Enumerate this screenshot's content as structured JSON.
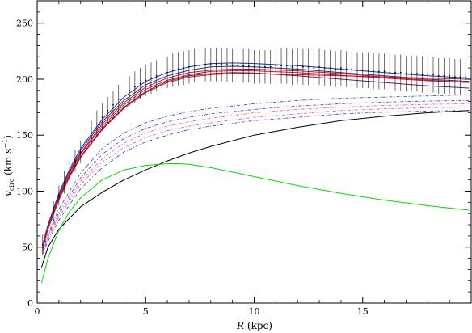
{
  "chart_data": {
    "type": "line",
    "xlabel": "R (kpc)",
    "ylabel": "v_circ (km s^-1)",
    "xlim": [
      0,
      20
    ],
    "ylim": [
      0,
      270
    ],
    "x_ticks": [
      0,
      5,
      10,
      15
    ],
    "y_ticks": [
      0,
      50,
      100,
      150,
      200,
      250
    ],
    "grid": false,
    "legend": "none",
    "colors": {
      "observed": "#000000",
      "blue_model": "#1f2ea8",
      "red_model": "#d21a1a",
      "purple_model": "#6b1a7a",
      "disk_curve": "#00dd00",
      "halo_curve": "#000000",
      "dotted_blue": "#3a3ad0",
      "dotted_pink": "#e05aa0"
    },
    "observed_points": {
      "x": [
        0.25,
        0.5,
        0.75,
        1.0,
        1.25,
        1.5,
        1.75,
        2.0,
        2.25,
        2.5,
        2.75,
        3.0,
        3.25,
        3.5,
        3.75,
        4.0,
        4.25,
        4.5,
        4.75,
        5.0,
        5.25,
        5.5,
        5.75,
        6.0,
        6.25,
        6.5,
        6.75,
        7.0,
        7.25,
        7.5,
        7.75,
        8.0,
        8.25,
        8.5,
        8.75,
        9.0,
        9.25,
        9.5,
        9.75,
        10.0,
        10.25,
        10.5,
        10.75,
        11.0,
        11.25,
        11.5,
        11.75,
        12.0,
        12.25,
        12.5,
        12.75,
        13.0,
        13.25,
        13.5,
        13.75,
        14.0,
        14.25,
        14.5,
        14.75,
        15.0,
        15.25,
        15.5,
        15.75,
        16.0,
        16.25,
        16.5,
        16.75,
        17.0,
        17.25,
        17.5,
        17.75,
        18.0,
        18.25,
        18.5,
        18.75,
        19.0,
        19.25,
        19.5,
        19.75
      ],
      "v": [
        52,
        68,
        82,
        96,
        108,
        118,
        127,
        135,
        145,
        152,
        160,
        166,
        172,
        177,
        182,
        186,
        190,
        193,
        196,
        199,
        201,
        203,
        205,
        206,
        208,
        209,
        210,
        211,
        212,
        212,
        213,
        213,
        213,
        213,
        213,
        212,
        212,
        212,
        212,
        211,
        211,
        211,
        211,
        212,
        212,
        212,
        211,
        212,
        211,
        211,
        210,
        211,
        210,
        210,
        209,
        210,
        209,
        209,
        208,
        208,
        208,
        207,
        207,
        207,
        206,
        206,
        206,
        205,
        205,
        205,
        204,
        204,
        204,
        203,
        203,
        203,
        202,
        202,
        202
      ],
      "err": [
        9,
        9,
        9,
        9,
        10,
        10,
        10,
        10,
        11,
        11,
        12,
        12,
        12,
        13,
        13,
        13,
        13,
        14,
        14,
        14,
        14,
        14,
        14,
        14,
        15,
        15,
        15,
        15,
        15,
        15,
        15,
        15,
        15,
        15,
        15,
        15,
        15,
        15,
        15,
        15,
        15,
        15,
        15,
        15,
        16,
        16,
        16,
        16,
        16,
        16,
        16,
        16,
        16,
        16,
        16,
        16,
        16,
        16,
        16,
        16,
        16,
        16,
        16,
        16,
        16,
        16,
        16,
        16,
        16,
        16,
        16,
        16,
        16,
        16,
        16,
        16,
        16,
        16,
        16
      ]
    },
    "series": [
      {
        "color": "#1f2ea8",
        "style": "solid",
        "x": [
          0.25,
          0.5,
          1,
          1.5,
          2,
          3,
          4,
          5,
          6,
          7,
          8,
          9,
          10,
          12,
          14,
          16,
          18,
          19.9
        ],
        "y": [
          52,
          70,
          98,
          120,
          138,
          164,
          184,
          198,
          206,
          211,
          214,
          214.5,
          214,
          212,
          209,
          206,
          203,
          201
        ]
      },
      {
        "color": "#1f2ea8",
        "style": "solid",
        "x": [
          0.25,
          0.5,
          1,
          1.5,
          2,
          3,
          4,
          5,
          6,
          7,
          8,
          9,
          10,
          12,
          14,
          16,
          18,
          19.9
        ],
        "y": [
          51,
          69,
          96,
          118,
          136,
          162,
          181,
          195,
          203,
          208,
          211,
          211.5,
          211,
          209,
          206,
          203,
          200,
          198
        ]
      },
      {
        "color": "#d21a1a",
        "style": "solid",
        "x": [
          0.25,
          0.5,
          1,
          1.5,
          2,
          3,
          4,
          5,
          6,
          7,
          8,
          9,
          10,
          12,
          14,
          16,
          18,
          19.9
        ],
        "y": [
          50,
          68,
          95,
          117,
          134,
          160,
          179,
          193,
          201,
          206,
          208,
          209,
          209,
          207.5,
          205,
          202,
          199,
          197
        ]
      },
      {
        "color": "#d21a1a",
        "style": "solid",
        "x": [
          0.25,
          0.5,
          1,
          1.5,
          2,
          3,
          4,
          5,
          6,
          7,
          8,
          9,
          10,
          12,
          14,
          16,
          18,
          19.9
        ],
        "y": [
          50,
          67,
          94,
          115,
          133,
          158,
          177,
          191,
          199,
          204,
          207,
          207.5,
          207.5,
          206,
          203.5,
          201,
          198.5,
          197
        ]
      },
      {
        "color": "#6b1a7a",
        "style": "solid",
        "x": [
          0.25,
          0.5,
          1,
          1.5,
          2,
          3,
          4,
          5,
          6,
          7,
          8,
          9,
          10,
          12,
          14,
          16,
          18,
          19.9
        ],
        "y": [
          49,
          66,
          93,
          114,
          131,
          156,
          175,
          189,
          198,
          203,
          205,
          206,
          205.5,
          203,
          200,
          197,
          194,
          192
        ]
      },
      {
        "color": "#d21a1a",
        "style": "solid",
        "x": [
          0.25,
          0.5,
          1,
          1.5,
          2,
          3,
          4,
          5,
          6,
          7,
          8,
          9,
          10,
          12,
          14,
          16,
          18,
          19.9
        ],
        "y": [
          49,
          66,
          92,
          113,
          130,
          155,
          174,
          188,
          197,
          202,
          204,
          205,
          205,
          204,
          203,
          202,
          201,
          200
        ]
      },
      {
        "color": "#3a3ad0",
        "style": "dashdot",
        "x": [
          0.25,
          0.5,
          1,
          2,
          3,
          4,
          5,
          6,
          7,
          8,
          10,
          12,
          14,
          16,
          18,
          19.9
        ],
        "y": [
          48,
          62,
          84,
          116,
          138,
          152,
          161,
          167,
          171,
          174,
          178,
          181,
          183,
          184,
          185,
          186
        ]
      },
      {
        "color": "#3a3ad0",
        "style": "dashdot",
        "x": [
          0.25,
          0.5,
          1,
          2,
          3,
          4,
          5,
          6,
          7,
          8,
          10,
          12,
          14,
          16,
          18,
          19.9
        ],
        "y": [
          47,
          60,
          81,
          112,
          133,
          147,
          156,
          162,
          166,
          169,
          173,
          176,
          178,
          179.5,
          180.5,
          181
        ]
      },
      {
        "color": "#e05aa0",
        "style": "dashdot",
        "x": [
          0.25,
          0.5,
          1,
          2,
          3,
          4,
          5,
          6,
          7,
          8,
          10,
          12,
          14,
          16,
          18,
          19.9
        ],
        "y": [
          46,
          59,
          79,
          109,
          129,
          143,
          152,
          158,
          162,
          165,
          170,
          173,
          175,
          176.5,
          177.5,
          178
        ]
      },
      {
        "color": "#e05aa0",
        "style": "dashdot",
        "x": [
          0.25,
          0.5,
          1,
          2,
          3,
          4,
          5,
          6,
          7,
          8,
          10,
          12,
          14,
          16,
          18,
          19.9
        ],
        "y": [
          45,
          57,
          77,
          106,
          126,
          139,
          148,
          154,
          158,
          161,
          166,
          169,
          172,
          173.5,
          174.5,
          175
        ]
      },
      {
        "color": "#3a3ad0",
        "style": "dashdot",
        "x": [
          0.25,
          0.5,
          1,
          2,
          3,
          4,
          5,
          6,
          7,
          8,
          10,
          12,
          14,
          16,
          18,
          19.9
        ],
        "y": [
          44,
          55,
          74,
          102,
          121,
          135,
          144,
          150,
          155,
          158,
          163,
          166,
          169,
          170.5,
          171.5,
          172
        ]
      },
      {
        "color": "#000000",
        "style": "solid",
        "x": [
          0.2,
          0.5,
          1,
          2,
          3,
          4,
          5,
          6,
          7,
          8,
          10,
          12,
          14,
          16,
          18,
          19.9
        ],
        "y": [
          32,
          50,
          66,
          86,
          99,
          110,
          119,
          127,
          134,
          140,
          150,
          157,
          163,
          167,
          170,
          172
        ]
      },
      {
        "color": "#00dd00",
        "style": "solid",
        "x": [
          0.2,
          0.5,
          1,
          1.5,
          2,
          3,
          4,
          5,
          6,
          6.5,
          7,
          8,
          10,
          12,
          14,
          16,
          18,
          19.9
        ],
        "y": [
          18,
          40,
          65,
          82,
          94,
          110,
          119,
          123,
          124.5,
          124.5,
          124,
          121,
          113,
          105,
          98,
          92,
          87,
          83
        ]
      }
    ]
  }
}
